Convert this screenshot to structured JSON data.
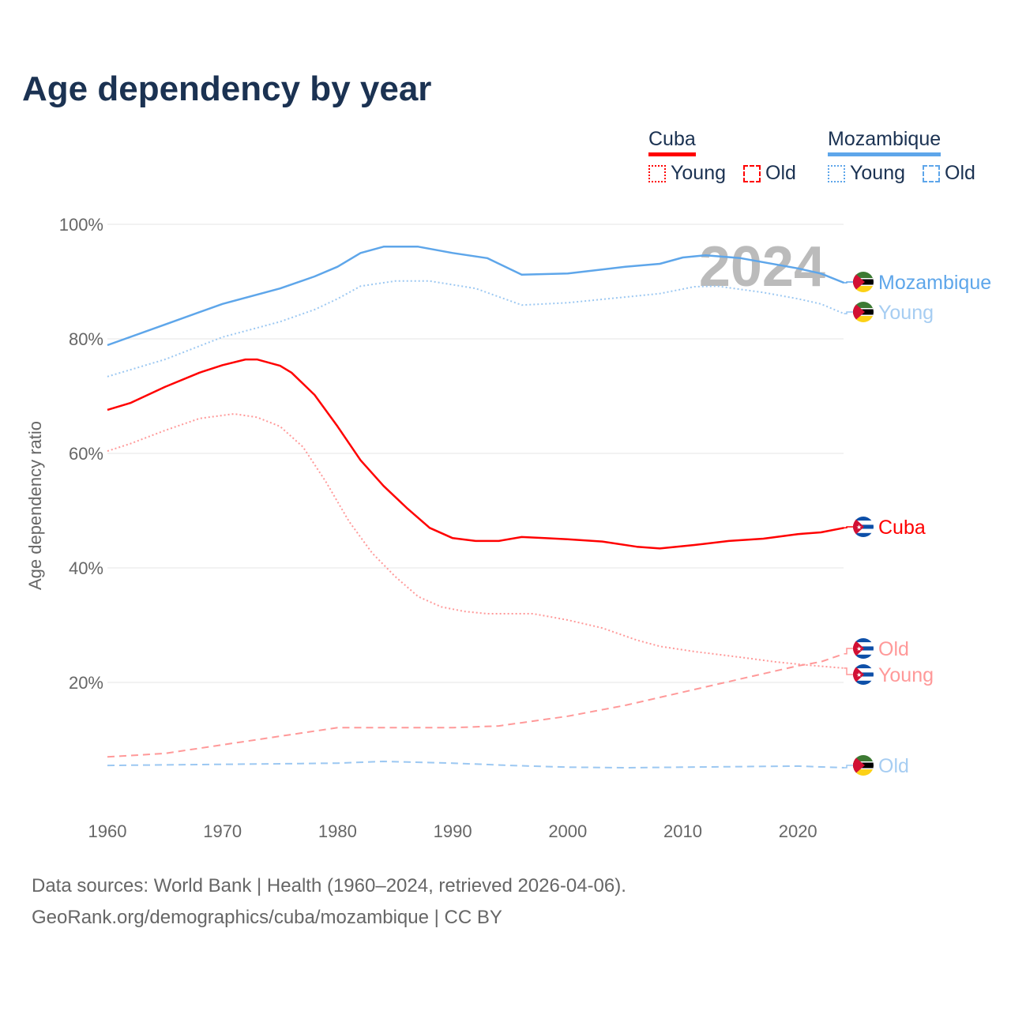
{
  "title": "Age dependency by year",
  "legend": {
    "groups": [
      {
        "name": "Cuba",
        "color": "#ff0000",
        "items": [
          "Young",
          "Old"
        ]
      },
      {
        "name": "Mozambique",
        "color": "#5ea6ea",
        "items": [
          "Young",
          "Old"
        ]
      }
    ]
  },
  "footer": {
    "line1": "Data sources: World Bank | Health (1960–2024, retrieved 2026-04-06).",
    "line2": "GeoRank.org/demographics/cuba/mozambique | CC BY"
  },
  "chart_data": {
    "type": "line",
    "title": "Age dependency by year",
    "xlabel": "",
    "ylabel": "Age dependency ratio",
    "xlim": [
      1960,
      2024
    ],
    "ylim": [
      0,
      100
    ],
    "x_ticks": [
      "1960",
      "1970",
      "1980",
      "1990",
      "2000",
      "2010",
      "2020"
    ],
    "y_ticks": [
      "20%",
      "40%",
      "60%",
      "80%",
      "100%"
    ],
    "y_tick_values": [
      20,
      40,
      60,
      80,
      100
    ],
    "watermark_year": "2024",
    "series": [
      {
        "name": "Mozambique",
        "label": "Mozambique",
        "country": "Mozambique",
        "style": "solid",
        "color": "#5ea6ea",
        "label_color": "#5ea6ea",
        "points": [
          [
            1960,
            78.9
          ],
          [
            1965,
            82.5
          ],
          [
            1970,
            86.1
          ],
          [
            1975,
            88.8
          ],
          [
            1978,
            90.9
          ],
          [
            1980,
            92.6
          ],
          [
            1982,
            95.0
          ],
          [
            1984,
            96.1
          ],
          [
            1987,
            96.1
          ],
          [
            1990,
            95.0
          ],
          [
            1993,
            94.1
          ],
          [
            1996,
            91.2
          ],
          [
            2000,
            91.4
          ],
          [
            2005,
            92.6
          ],
          [
            2008,
            93.1
          ],
          [
            2010,
            94.2
          ],
          [
            2012,
            94.6
          ],
          [
            2015,
            94.1
          ],
          [
            2020,
            92.3
          ],
          [
            2022,
            91.4
          ],
          [
            2024,
            89.8
          ]
        ]
      },
      {
        "name": "Mozambique Young",
        "label": "Young",
        "country": "Mozambique",
        "style": "dotted",
        "color": "#9cc8f2",
        "label_color": "#a6cdf2",
        "points": [
          [
            1960,
            73.4
          ],
          [
            1965,
            76.4
          ],
          [
            1970,
            80.3
          ],
          [
            1975,
            83.0
          ],
          [
            1978,
            85.1
          ],
          [
            1980,
            87.0
          ],
          [
            1982,
            89.2
          ],
          [
            1985,
            90.1
          ],
          [
            1988,
            90.1
          ],
          [
            1992,
            88.8
          ],
          [
            1996,
            85.9
          ],
          [
            2000,
            86.3
          ],
          [
            2005,
            87.3
          ],
          [
            2008,
            87.9
          ],
          [
            2011,
            89.1
          ],
          [
            2013,
            89.2
          ],
          [
            2017,
            88.1
          ],
          [
            2020,
            87.0
          ],
          [
            2022,
            86.1
          ],
          [
            2024,
            84.4
          ]
        ]
      },
      {
        "name": "Mozambique Old",
        "label": "Old",
        "country": "Mozambique",
        "style": "dashed",
        "color": "#9cc8f2",
        "label_color": "#a6cdf2",
        "points": [
          [
            1960,
            5.5
          ],
          [
            1975,
            5.8
          ],
          [
            1980,
            5.9
          ],
          [
            1984,
            6.2
          ],
          [
            1990,
            5.9
          ],
          [
            1995,
            5.5
          ],
          [
            2000,
            5.2
          ],
          [
            2005,
            5.1
          ],
          [
            2010,
            5.2
          ],
          [
            2020,
            5.4
          ],
          [
            2024,
            5.1
          ]
        ]
      },
      {
        "name": "Cuba",
        "label": "Cuba",
        "country": "Cuba",
        "style": "solid",
        "color": "#ff0000",
        "label_color": "#ff0000",
        "points": [
          [
            1960,
            67.6
          ],
          [
            1962,
            68.8
          ],
          [
            1965,
            71.6
          ],
          [
            1968,
            74.1
          ],
          [
            1970,
            75.4
          ],
          [
            1972,
            76.4
          ],
          [
            1973,
            76.4
          ],
          [
            1975,
            75.3
          ],
          [
            1976,
            74.1
          ],
          [
            1978,
            70.2
          ],
          [
            1980,
            64.7
          ],
          [
            1982,
            58.8
          ],
          [
            1984,
            54.3
          ],
          [
            1986,
            50.5
          ],
          [
            1988,
            47.0
          ],
          [
            1990,
            45.2
          ],
          [
            1992,
            44.7
          ],
          [
            1994,
            44.7
          ],
          [
            1996,
            45.4
          ],
          [
            1998,
            45.2
          ],
          [
            2000,
            45.0
          ],
          [
            2003,
            44.6
          ],
          [
            2006,
            43.7
          ],
          [
            2008,
            43.4
          ],
          [
            2011,
            44.0
          ],
          [
            2014,
            44.7
          ],
          [
            2017,
            45.1
          ],
          [
            2020,
            45.9
          ],
          [
            2022,
            46.2
          ],
          [
            2024,
            47.0
          ]
        ]
      },
      {
        "name": "Cuba Young",
        "label": "Young",
        "country": "Cuba",
        "style": "dotted",
        "color": "#ff9999",
        "label_color": "#ff9999",
        "points": [
          [
            1960,
            60.4
          ],
          [
            1962,
            61.7
          ],
          [
            1965,
            64.0
          ],
          [
            1968,
            66.1
          ],
          [
            1971,
            66.9
          ],
          [
            1973,
            66.3
          ],
          [
            1975,
            64.7
          ],
          [
            1977,
            61.1
          ],
          [
            1979,
            55.0
          ],
          [
            1981,
            48.1
          ],
          [
            1983,
            42.6
          ],
          [
            1985,
            38.5
          ],
          [
            1987,
            35.0
          ],
          [
            1989,
            33.2
          ],
          [
            1991,
            32.4
          ],
          [
            1993,
            32.0
          ],
          [
            1995,
            32.0
          ],
          [
            1997,
            32.0
          ],
          [
            2000,
            30.9
          ],
          [
            2003,
            29.5
          ],
          [
            2006,
            27.4
          ],
          [
            2008,
            26.3
          ],
          [
            2011,
            25.4
          ],
          [
            2015,
            24.4
          ],
          [
            2018,
            23.6
          ],
          [
            2021,
            23.0
          ],
          [
            2024,
            22.5
          ]
        ]
      },
      {
        "name": "Cuba Old",
        "label": "Old",
        "country": "Cuba",
        "style": "dashed",
        "color": "#ff9999",
        "label_color": "#ff9999",
        "points": [
          [
            1960,
            7.0
          ],
          [
            1965,
            7.6
          ],
          [
            1970,
            9.1
          ],
          [
            1975,
            10.6
          ],
          [
            1980,
            12.1
          ],
          [
            1990,
            12.1
          ],
          [
            1994,
            12.4
          ],
          [
            2000,
            14.1
          ],
          [
            2005,
            16.0
          ],
          [
            2010,
            18.3
          ],
          [
            2015,
            20.6
          ],
          [
            2020,
            22.9
          ],
          [
            2022,
            23.6
          ],
          [
            2024,
            25.0
          ]
        ]
      }
    ]
  }
}
